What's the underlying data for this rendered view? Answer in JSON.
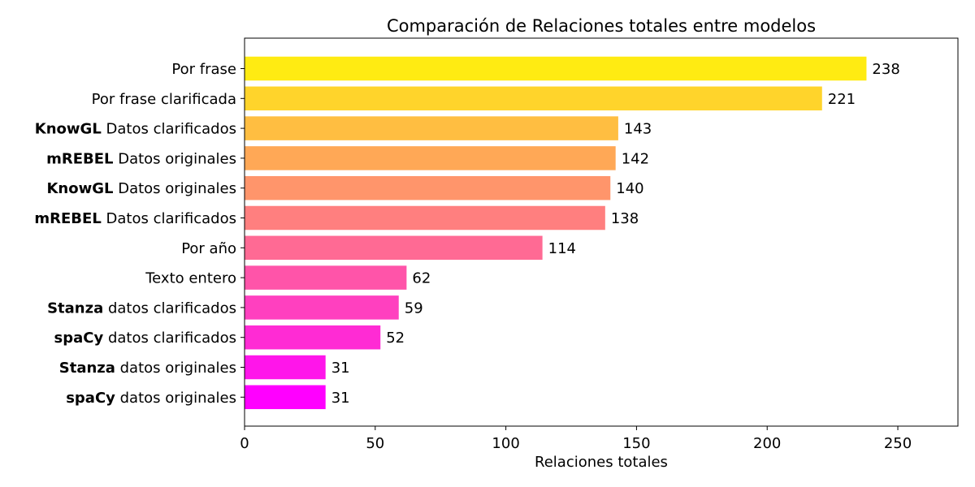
{
  "chart_data": {
    "type": "bar",
    "orientation": "horizontal",
    "title": "Comparación de Relaciones totales entre modelos",
    "xlabel": "Relaciones totales",
    "ylabel": "",
    "xlim": [
      0,
      273
    ],
    "xticks": [
      0,
      50,
      100,
      150,
      200,
      250
    ],
    "grid": false,
    "categories": [
      {
        "bold": "",
        "text": "Por frase"
      },
      {
        "bold": "",
        "text": "Por frase clarificada"
      },
      {
        "bold": "KnowGL",
        "text": " Datos clarificados"
      },
      {
        "bold": "mREBEL",
        "text": " Datos originales"
      },
      {
        "bold": "KnowGL",
        "text": " Datos originales"
      },
      {
        "bold": "mREBEL",
        "text": " Datos clarificados"
      },
      {
        "bold": "",
        "text": "Por año"
      },
      {
        "bold": "",
        "text": "Texto entero"
      },
      {
        "bold": "Stanza",
        "text": " datos clarificados"
      },
      {
        "bold": "spaCy",
        "text": " datos clarificados"
      },
      {
        "bold": "Stanza",
        "text": " datos originales"
      },
      {
        "bold": "spaCy",
        "text": " datos originales"
      }
    ],
    "values": [
      238,
      221,
      143,
      142,
      140,
      138,
      114,
      62,
      59,
      52,
      31,
      31
    ],
    "colors": [
      "#ffeb12",
      "#ffd42b",
      "#ffbe41",
      "#ffa856",
      "#ff956b",
      "#ff7f7f",
      "#ff6a94",
      "#ff54a9",
      "#ff40bf",
      "#ff2bd4",
      "#ff15ea",
      "#ff00ff"
    ]
  }
}
